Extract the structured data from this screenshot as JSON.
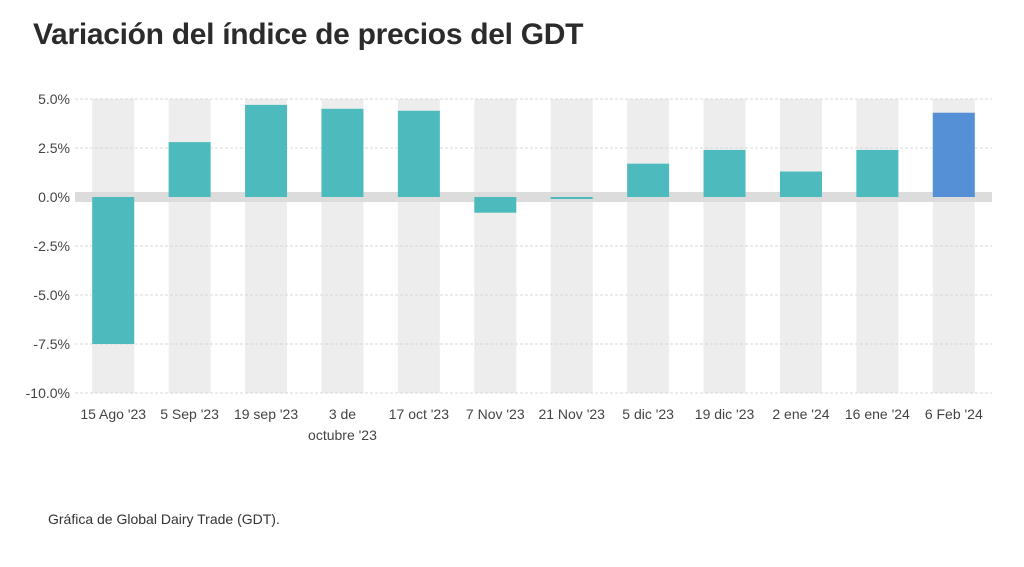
{
  "chart_data": {
    "type": "bar",
    "title": "Variación del índice de precios del GDT",
    "xlabel": "",
    "ylabel": "",
    "ylim": [
      -10,
      5
    ],
    "y_ticks": [
      "5.0%",
      "2.5%",
      "0.0%",
      "-2.5%",
      "-5.0%",
      "-7.5%",
      "-10.0%"
    ],
    "y_tick_values": [
      5,
      2.5,
      0,
      -2.5,
      -5,
      -7.5,
      -10
    ],
    "categories": [
      "15 Ago '23",
      "5 Sep '23",
      "19 sep '23",
      "3 de octubre '23",
      "17 oct '23",
      "7 Nov '23",
      "21 Nov '23",
      "5 dic '23",
      "19 dic '23",
      "2 ene '24",
      "16 ene '24",
      "6 Feb '24"
    ],
    "category_lines": [
      [
        "15 Ago '23"
      ],
      [
        "5 Sep '23"
      ],
      [
        "19 sep '23"
      ],
      [
        "3 de",
        "octubre '23"
      ],
      [
        "17 oct '23"
      ],
      [
        "7 Nov '23"
      ],
      [
        "21 Nov '23"
      ],
      [
        "5 dic '23"
      ],
      [
        "19 dic '23"
      ],
      [
        "2 ene '24"
      ],
      [
        "16 ene '24"
      ],
      [
        "6 Feb '24"
      ]
    ],
    "values": [
      -7.5,
      2.8,
      4.7,
      4.5,
      4.4,
      -0.8,
      -0.1,
      1.7,
      2.4,
      1.3,
      2.4,
      4.3
    ],
    "colors": {
      "bar": "#4dbbbd",
      "highlight_bar": "#5590d6",
      "column_band": "#ededed",
      "zero_band": "#dcdcdc",
      "grid": "#d8d8d8"
    },
    "highlight_index": 11,
    "grid": true
  },
  "caption": "Gráfica de Global Dairy Trade (GDT)."
}
